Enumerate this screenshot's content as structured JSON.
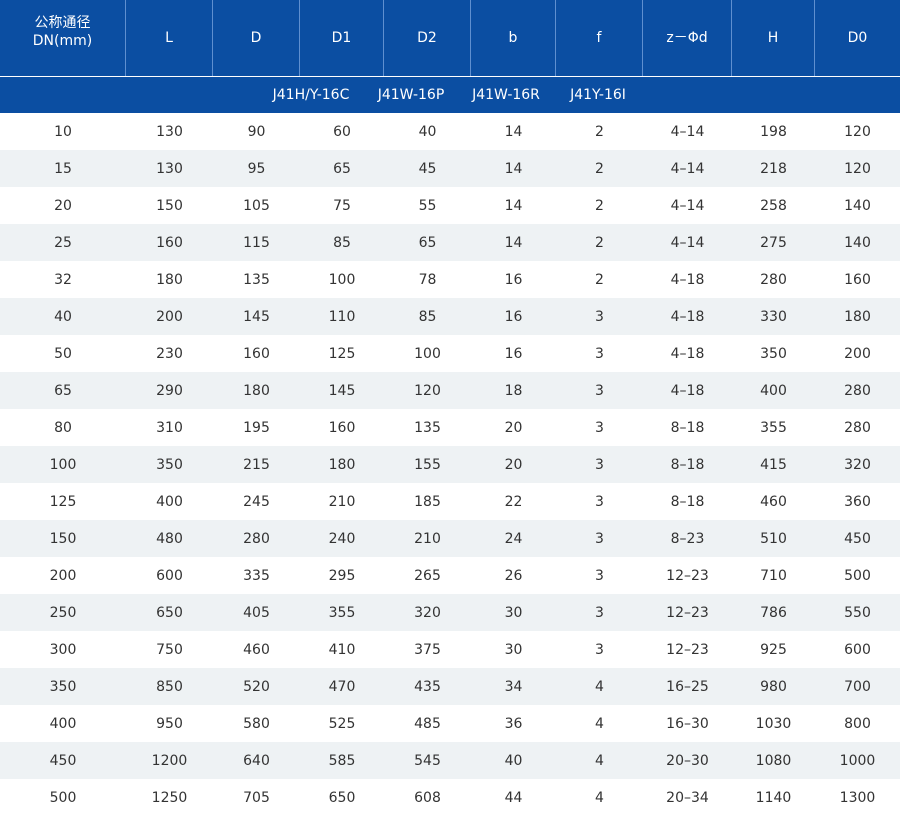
{
  "table": {
    "headers": [
      [
        "公称通径",
        "DN(mm)"
      ],
      "L",
      "D",
      "D1",
      "D2",
      "b",
      "f",
      "z－Φd",
      "H",
      "D0"
    ],
    "models": [
      "J41H/Y-16C",
      "J41W-16P",
      "J41W-16R",
      "J41Y-16I"
    ],
    "rows": [
      [
        "10",
        "130",
        "90",
        "60",
        "40",
        "14",
        "2",
        "4–14",
        "198",
        "120"
      ],
      [
        "15",
        "130",
        "95",
        "65",
        "45",
        "14",
        "2",
        "4–14",
        "218",
        "120"
      ],
      [
        "20",
        "150",
        "105",
        "75",
        "55",
        "14",
        "2",
        "4–14",
        "258",
        "140"
      ],
      [
        "25",
        "160",
        "115",
        "85",
        "65",
        "14",
        "2",
        "4–14",
        "275",
        "140"
      ],
      [
        "32",
        "180",
        "135",
        "100",
        "78",
        "16",
        "2",
        "4–18",
        "280",
        "160"
      ],
      [
        "40",
        "200",
        "145",
        "110",
        "85",
        "16",
        "3",
        "4–18",
        "330",
        "180"
      ],
      [
        "50",
        "230",
        "160",
        "125",
        "100",
        "16",
        "3",
        "4–18",
        "350",
        "200"
      ],
      [
        "65",
        "290",
        "180",
        "145",
        "120",
        "18",
        "3",
        "4–18",
        "400",
        "280"
      ],
      [
        "80",
        "310",
        "195",
        "160",
        "135",
        "20",
        "3",
        "8–18",
        "355",
        "280"
      ],
      [
        "100",
        "350",
        "215",
        "180",
        "155",
        "20",
        "3",
        "8–18",
        "415",
        "320"
      ],
      [
        "125",
        "400",
        "245",
        "210",
        "185",
        "22",
        "3",
        "8–18",
        "460",
        "360"
      ],
      [
        "150",
        "480",
        "280",
        "240",
        "210",
        "24",
        "3",
        "8–23",
        "510",
        "450"
      ],
      [
        "200",
        "600",
        "335",
        "295",
        "265",
        "26",
        "3",
        "12–23",
        "710",
        "500"
      ],
      [
        "250",
        "650",
        "405",
        "355",
        "320",
        "30",
        "3",
        "12–23",
        "786",
        "550"
      ],
      [
        "300",
        "750",
        "460",
        "410",
        "375",
        "30",
        "3",
        "12–23",
        "925",
        "600"
      ],
      [
        "350",
        "850",
        "520",
        "470",
        "435",
        "34",
        "4",
        "16–25",
        "980",
        "700"
      ],
      [
        "400",
        "950",
        "580",
        "525",
        "485",
        "36",
        "4",
        "16–30",
        "1030",
        "800"
      ],
      [
        "450",
        "1200",
        "640",
        "585",
        "545",
        "40",
        "4",
        "20–30",
        "1080",
        "1000"
      ],
      [
        "500",
        "1250",
        "705",
        "650",
        "608",
        "44",
        "4",
        "20–34",
        "1140",
        "1300"
      ]
    ]
  }
}
